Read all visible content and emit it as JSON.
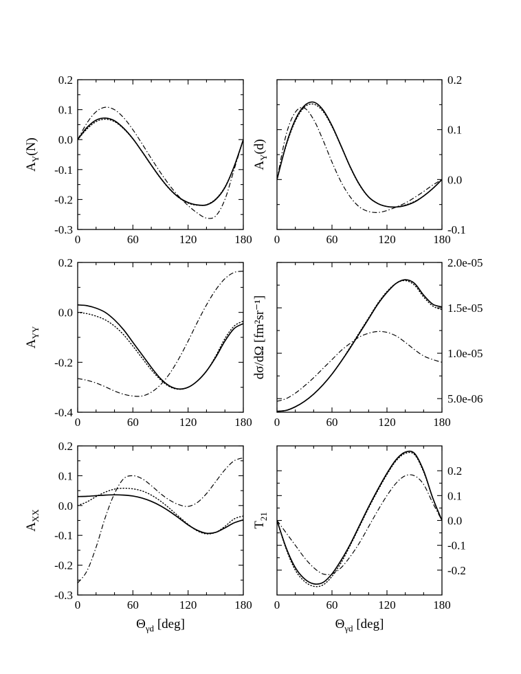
{
  "figure": {
    "series_styles": {
      "solid": "solid",
      "dotted": "dotted",
      "dashdot": "dash-dot"
    },
    "line_color": "#000000"
  },
  "chart_data": [
    {
      "id": "ayn",
      "type": "line",
      "position": "top-left",
      "ylabel": "A",
      "ylabel_sub": "Y",
      "ylabel_suffix": "(N)",
      "xlabel": "",
      "xlabel_sub": "",
      "xlabel_suffix": "",
      "xlim": [
        0,
        180
      ],
      "ylim": [
        -0.3,
        0.2
      ],
      "xticks": [
        0,
        60,
        120,
        180
      ],
      "xtick_labels": [
        "0",
        "60",
        "120",
        "180"
      ],
      "yticks": [
        -0.3,
        -0.2,
        -0.1,
        0.0,
        0.1,
        0.2
      ],
      "ytick_labels": [
        "-0.3",
        "-0.2",
        "-0.1",
        "0.0",
        "0.1",
        "0.2"
      ],
      "y_axis_side": "left",
      "series": [
        {
          "name": "solid",
          "style": "solid",
          "x": [
            0,
            10,
            20,
            30,
            40,
            50,
            60,
            70,
            80,
            90,
            100,
            110,
            120,
            130,
            140,
            150,
            160,
            170,
            180
          ],
          "y": [
            0.0,
            0.04,
            0.065,
            0.072,
            0.063,
            0.038,
            0.003,
            -0.04,
            -0.085,
            -0.128,
            -0.165,
            -0.193,
            -0.21,
            -0.218,
            -0.218,
            -0.2,
            -0.16,
            -0.09,
            0.0
          ]
        },
        {
          "name": "dotted",
          "style": "dotted",
          "x": [
            0,
            10,
            20,
            30,
            40,
            50,
            60,
            70,
            80,
            90,
            100,
            110,
            120,
            130,
            140,
            150,
            160,
            170,
            180
          ],
          "y": [
            0.0,
            0.035,
            0.06,
            0.068,
            0.06,
            0.036,
            0.002,
            -0.041,
            -0.086,
            -0.129,
            -0.166,
            -0.194,
            -0.212,
            -0.219,
            -0.217,
            -0.198,
            -0.158,
            -0.09,
            0.0
          ]
        },
        {
          "name": "dashdot",
          "style": "dashdot",
          "x": [
            0,
            10,
            20,
            30,
            40,
            50,
            60,
            70,
            80,
            90,
            100,
            110,
            120,
            130,
            140,
            150,
            160,
            170,
            180
          ],
          "y": [
            0.0,
            0.055,
            0.093,
            0.108,
            0.1,
            0.073,
            0.033,
            -0.014,
            -0.063,
            -0.11,
            -0.153,
            -0.19,
            -0.22,
            -0.245,
            -0.262,
            -0.255,
            -0.2,
            -0.1,
            0.0
          ]
        }
      ]
    },
    {
      "id": "ayd",
      "type": "line",
      "position": "top-right",
      "ylabel": "A",
      "ylabel_sub": "Y",
      "ylabel_suffix": "(d)",
      "xlabel": "",
      "xlabel_sub": "",
      "xlabel_suffix": "",
      "xlim": [
        0,
        180
      ],
      "ylim": [
        -0.1,
        0.2
      ],
      "xticks": [
        0,
        60,
        120,
        180
      ],
      "xtick_labels": [
        "0",
        "60",
        "120",
        "180"
      ],
      "yticks": [
        -0.1,
        0.0,
        0.1,
        0.2
      ],
      "ytick_labels": [
        "-0.1",
        "0.0",
        "0.1",
        "0.2"
      ],
      "y_axis_side": "right",
      "series": [
        {
          "name": "solid",
          "style": "solid",
          "x": [
            0,
            10,
            20,
            30,
            40,
            50,
            60,
            70,
            80,
            90,
            100,
            110,
            120,
            130,
            140,
            150,
            160,
            170,
            180
          ],
          "y": [
            0.0,
            0.07,
            0.12,
            0.148,
            0.155,
            0.14,
            0.108,
            0.067,
            0.025,
            -0.01,
            -0.035,
            -0.048,
            -0.054,
            -0.055,
            -0.052,
            -0.045,
            -0.033,
            -0.018,
            0.0
          ]
        },
        {
          "name": "dotted",
          "style": "dotted",
          "x": [
            0,
            10,
            20,
            30,
            40,
            50,
            60,
            70,
            80,
            90,
            100,
            110,
            120,
            130,
            140,
            150,
            160,
            170,
            180
          ],
          "y": [
            0.0,
            0.068,
            0.117,
            0.145,
            0.151,
            0.137,
            0.106,
            0.066,
            0.024,
            -0.011,
            -0.035,
            -0.048,
            -0.054,
            -0.055,
            -0.051,
            -0.044,
            -0.033,
            -0.018,
            0.0
          ]
        },
        {
          "name": "dashdot",
          "style": "dashdot",
          "x": [
            0,
            10,
            20,
            30,
            40,
            50,
            60,
            70,
            80,
            90,
            100,
            110,
            120,
            130,
            140,
            150,
            160,
            170,
            180
          ],
          "y": [
            0.0,
            0.09,
            0.135,
            0.143,
            0.12,
            0.08,
            0.035,
            -0.005,
            -0.035,
            -0.055,
            -0.064,
            -0.066,
            -0.062,
            -0.055,
            -0.047,
            -0.036,
            -0.024,
            -0.011,
            0.0
          ]
        }
      ]
    },
    {
      "id": "ayy",
      "type": "line",
      "position": "middle-left",
      "ylabel": "A",
      "ylabel_sub": "YY",
      "ylabel_suffix": "",
      "xlabel": "",
      "xlabel_sub": "",
      "xlabel_suffix": "",
      "xlim": [
        0,
        180
      ],
      "ylim": [
        -0.4,
        0.2
      ],
      "xticks": [
        0,
        60,
        120,
        180
      ],
      "xtick_labels": [
        "0",
        "60",
        "120",
        "180"
      ],
      "yticks": [
        -0.4,
        -0.2,
        0.0,
        0.2
      ],
      "ytick_labels": [
        "-0.4",
        "-0.2",
        "0.0",
        "0.2"
      ],
      "y_axis_side": "left",
      "series": [
        {
          "name": "solid",
          "style": "solid",
          "x": [
            0,
            10,
            20,
            30,
            40,
            50,
            60,
            70,
            80,
            90,
            100,
            110,
            120,
            130,
            140,
            150,
            160,
            170,
            180
          ],
          "y": [
            0.03,
            0.027,
            0.017,
            0.0,
            -0.03,
            -0.07,
            -0.12,
            -0.17,
            -0.22,
            -0.265,
            -0.295,
            -0.307,
            -0.3,
            -0.275,
            -0.235,
            -0.18,
            -0.115,
            -0.065,
            -0.045
          ]
        },
        {
          "name": "dotted",
          "style": "dotted",
          "x": [
            0,
            10,
            20,
            30,
            40,
            50,
            60,
            70,
            80,
            90,
            100,
            110,
            120,
            130,
            140,
            150,
            160,
            170,
            180
          ],
          "y": [
            0.0,
            -0.005,
            -0.015,
            -0.03,
            -0.055,
            -0.09,
            -0.135,
            -0.183,
            -0.23,
            -0.27,
            -0.298,
            -0.308,
            -0.3,
            -0.275,
            -0.235,
            -0.175,
            -0.105,
            -0.055,
            -0.035
          ]
        },
        {
          "name": "dashdot",
          "style": "dashdot",
          "x": [
            0,
            10,
            20,
            30,
            40,
            50,
            60,
            70,
            80,
            90,
            100,
            110,
            120,
            130,
            140,
            150,
            160,
            170,
            180
          ],
          "y": [
            -0.265,
            -0.272,
            -0.283,
            -0.298,
            -0.315,
            -0.328,
            -0.335,
            -0.335,
            -0.32,
            -0.29,
            -0.245,
            -0.185,
            -0.115,
            -0.04,
            0.03,
            0.09,
            0.135,
            0.16,
            0.165
          ]
        }
      ]
    },
    {
      "id": "dsig",
      "type": "line",
      "position": "middle-right",
      "ylabel": "dσ/dΩ [fm²sr⁻¹]",
      "ylabel_sub": "",
      "ylabel_suffix": "",
      "xlabel": "",
      "xlabel_sub": "",
      "xlabel_suffix": "",
      "xlim": [
        0,
        180
      ],
      "ylim": [
        3.5e-06,
        2e-05
      ],
      "xticks": [
        0,
        60,
        120,
        180
      ],
      "xtick_labels": [
        "0",
        "60",
        "120",
        "180"
      ],
      "yticks": [
        5e-06,
        1e-05,
        1.5e-05,
        2e-05
      ],
      "ytick_labels": [
        "5.0e-06",
        "1.0e-05",
        "1.5e-05",
        "2.0e-05"
      ],
      "y_axis_side": "right",
      "series": [
        {
          "name": "solid",
          "style": "solid",
          "x": [
            0,
            10,
            20,
            30,
            40,
            50,
            60,
            70,
            80,
            90,
            100,
            110,
            120,
            130,
            140,
            150,
            160,
            170,
            180
          ],
          "y": [
            3.6e-06,
            3.7e-06,
            4.1e-06,
            4.7e-06,
            5.5e-06,
            6.5e-06,
            7.7e-06,
            9.1e-06,
            1.06e-05,
            1.22e-05,
            1.38e-05,
            1.54e-05,
            1.67e-05,
            1.77e-05,
            1.81e-05,
            1.77e-05,
            1.64e-05,
            1.54e-05,
            1.51e-05
          ]
        },
        {
          "name": "dotted",
          "style": "dotted",
          "x": [
            0,
            10,
            20,
            30,
            40,
            50,
            60,
            70,
            80,
            90,
            100,
            110,
            120,
            130,
            140,
            150,
            160,
            170,
            180
          ],
          "y": [
            3.6e-06,
            3.7e-06,
            4.1e-06,
            4.7e-06,
            5.5e-06,
            6.5e-06,
            7.7e-06,
            9.1e-06,
            1.07e-05,
            1.23e-05,
            1.39e-05,
            1.55e-05,
            1.68e-05,
            1.77e-05,
            1.8e-05,
            1.75e-05,
            1.62e-05,
            1.52e-05,
            1.48e-05
          ]
        },
        {
          "name": "dashdot",
          "style": "dashdot",
          "x": [
            0,
            10,
            20,
            30,
            40,
            50,
            60,
            70,
            80,
            90,
            100,
            110,
            120,
            130,
            140,
            150,
            160,
            170,
            180
          ],
          "y": [
            4.7e-06,
            5e-06,
            5.6e-06,
            6.4e-06,
            7.3e-06,
            8.3e-06,
            9.3e-06,
            1.03e-05,
            1.11e-05,
            1.18e-05,
            1.22e-05,
            1.24e-05,
            1.23e-05,
            1.19e-05,
            1.12e-05,
            1.04e-05,
            9.7e-06,
            9.3e-06,
            9e-06
          ]
        }
      ]
    },
    {
      "id": "axx",
      "type": "line",
      "position": "bottom-left",
      "ylabel": "A",
      "ylabel_sub": "XX",
      "ylabel_suffix": "",
      "xlabel": "Θ",
      "xlabel_sub": "γd",
      "xlabel_suffix": " [deg]",
      "xlim": [
        0,
        180
      ],
      "ylim": [
        -0.3,
        0.2
      ],
      "xticks": [
        0,
        60,
        120,
        180
      ],
      "xtick_labels": [
        "0",
        "60",
        "120",
        "180"
      ],
      "yticks": [
        -0.3,
        -0.2,
        -0.1,
        0.0,
        0.1,
        0.2
      ],
      "ytick_labels": [
        "-0.3",
        "-0.2",
        "-0.1",
        "0.0",
        "0.1",
        "0.2"
      ],
      "y_axis_side": "left",
      "series": [
        {
          "name": "solid",
          "style": "solid",
          "x": [
            0,
            10,
            20,
            30,
            40,
            50,
            60,
            70,
            80,
            90,
            100,
            110,
            120,
            130,
            140,
            150,
            160,
            170,
            180
          ],
          "y": [
            0.03,
            0.031,
            0.033,
            0.035,
            0.036,
            0.035,
            0.032,
            0.025,
            0.014,
            -0.001,
            -0.02,
            -0.042,
            -0.065,
            -0.083,
            -0.093,
            -0.09,
            -0.075,
            -0.058,
            -0.048
          ]
        },
        {
          "name": "dotted",
          "style": "dotted",
          "x": [
            0,
            10,
            20,
            30,
            40,
            50,
            60,
            70,
            80,
            90,
            100,
            110,
            120,
            130,
            140,
            150,
            160,
            170,
            180
          ],
          "y": [
            0.0,
            0.012,
            0.03,
            0.045,
            0.055,
            0.058,
            0.056,
            0.049,
            0.035,
            0.015,
            -0.01,
            -0.037,
            -0.063,
            -0.085,
            -0.095,
            -0.09,
            -0.07,
            -0.045,
            -0.035
          ]
        },
        {
          "name": "dashdot",
          "style": "dashdot",
          "x": [
            0,
            10,
            20,
            30,
            40,
            50,
            60,
            70,
            80,
            90,
            100,
            110,
            120,
            130,
            140,
            150,
            160,
            170,
            180
          ],
          "y": [
            -0.26,
            -0.22,
            -0.14,
            -0.04,
            0.04,
            0.09,
            0.1,
            0.09,
            0.067,
            0.04,
            0.018,
            0.003,
            -0.003,
            0.01,
            0.04,
            0.08,
            0.12,
            0.15,
            0.16
          ]
        }
      ]
    },
    {
      "id": "t21",
      "type": "line",
      "position": "bottom-right",
      "ylabel": "T",
      "ylabel_sub": "21",
      "ylabel_suffix": "",
      "xlabel": "Θ",
      "xlabel_sub": "γd",
      "xlabel_suffix": " [deg]",
      "xlim": [
        0,
        180
      ],
      "ylim": [
        -0.3,
        0.3
      ],
      "xticks": [
        0,
        60,
        120,
        180
      ],
      "xtick_labels": [
        "0",
        "60",
        "120",
        "180"
      ],
      "yticks": [
        -0.2,
        -0.1,
        0.0,
        0.1,
        0.2
      ],
      "ytick_labels": [
        "-0.2",
        "-0.1",
        "0.0",
        "0.1",
        "0.2"
      ],
      "y_axis_side": "right",
      "series": [
        {
          "name": "solid",
          "style": "solid",
          "x": [
            0,
            10,
            20,
            30,
            40,
            50,
            60,
            70,
            80,
            90,
            100,
            110,
            120,
            130,
            140,
            150,
            160,
            170,
            180
          ],
          "y": [
            0.0,
            -0.11,
            -0.19,
            -0.235,
            -0.255,
            -0.25,
            -0.215,
            -0.16,
            -0.095,
            -0.02,
            0.055,
            0.125,
            0.19,
            0.245,
            0.275,
            0.27,
            0.2,
            0.09,
            0.0
          ]
        },
        {
          "name": "dotted",
          "style": "dotted",
          "x": [
            0,
            10,
            20,
            30,
            40,
            50,
            60,
            70,
            80,
            90,
            100,
            110,
            120,
            130,
            140,
            150,
            160,
            170,
            180
          ],
          "y": [
            0.0,
            -0.115,
            -0.2,
            -0.245,
            -0.265,
            -0.26,
            -0.225,
            -0.17,
            -0.1,
            -0.025,
            0.05,
            0.12,
            0.185,
            0.24,
            0.27,
            0.265,
            0.195,
            0.09,
            0.0
          ]
        },
        {
          "name": "dashdot",
          "style": "dashdot",
          "x": [
            0,
            10,
            20,
            30,
            40,
            50,
            60,
            70,
            80,
            90,
            100,
            110,
            120,
            130,
            140,
            150,
            160,
            170,
            180
          ],
          "y": [
            0.0,
            -0.05,
            -0.1,
            -0.15,
            -0.19,
            -0.215,
            -0.215,
            -0.19,
            -0.145,
            -0.09,
            -0.025,
            0.04,
            0.1,
            0.15,
            0.18,
            0.18,
            0.145,
            0.07,
            0.0
          ]
        }
      ]
    }
  ]
}
